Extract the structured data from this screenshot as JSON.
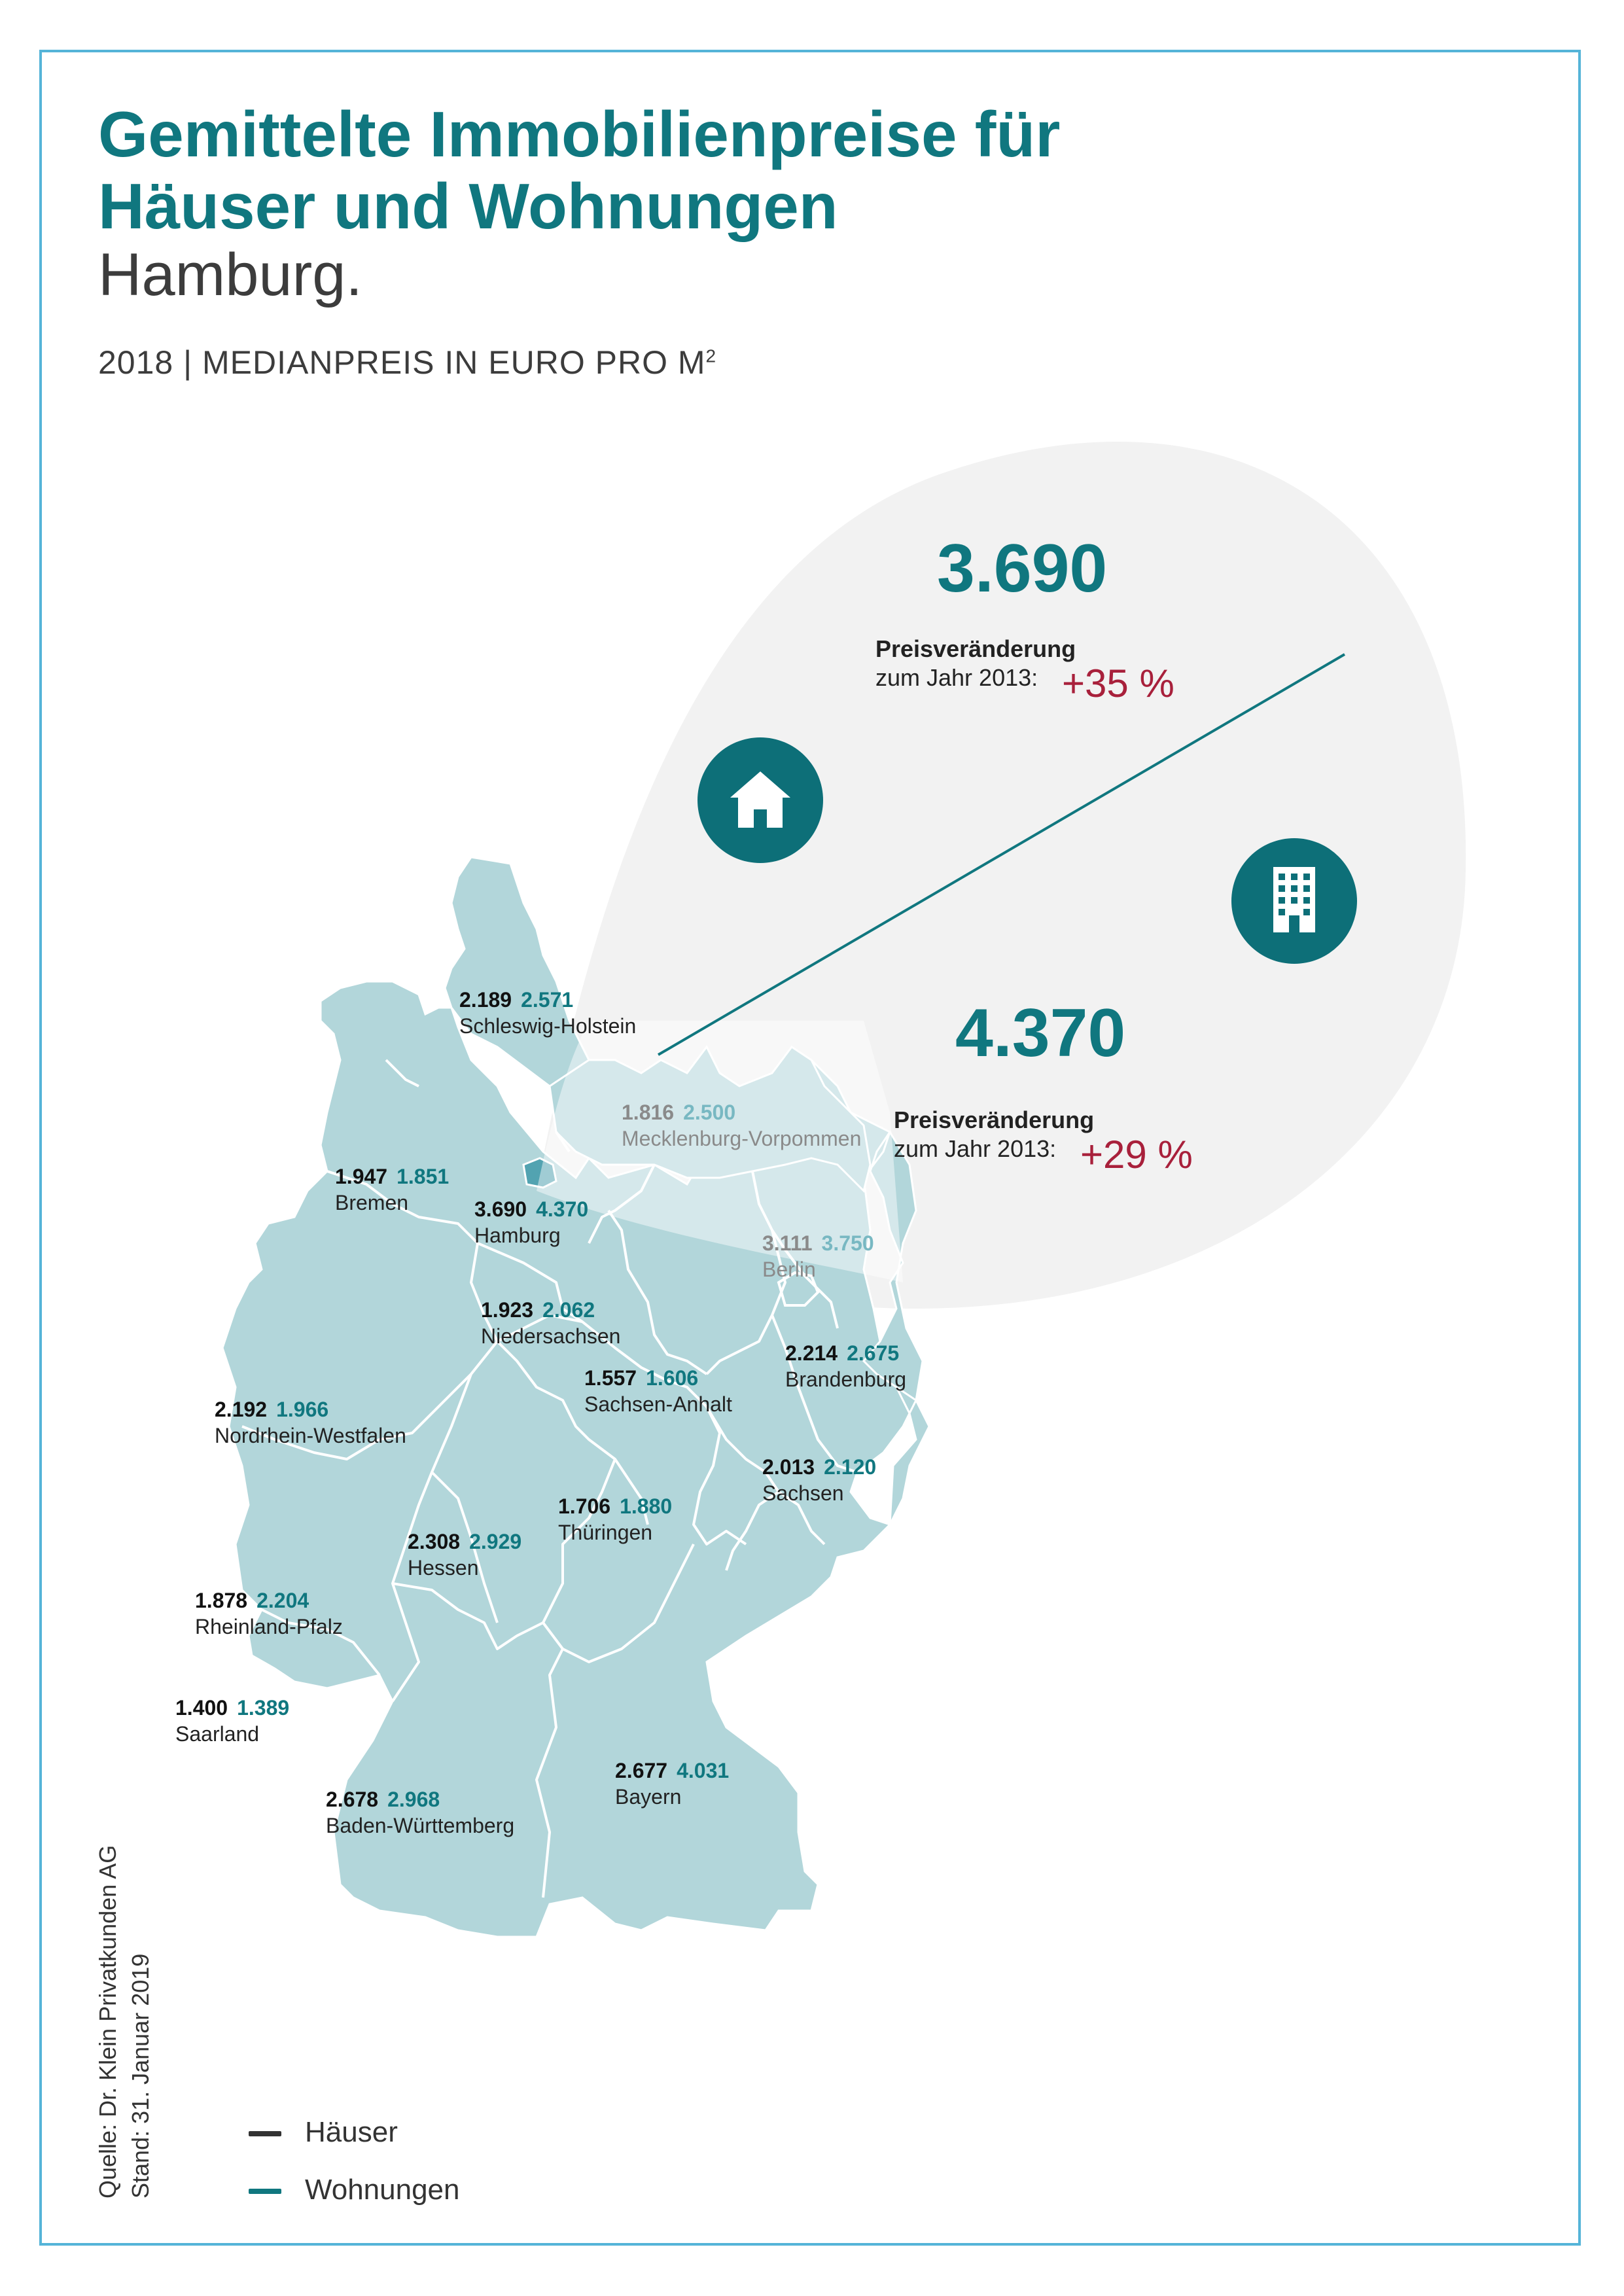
{
  "header": {
    "title": "Gemittelte Immobilienpreise für Häuser und Wohnungen",
    "subtitle": "Hamburg.",
    "meta_text": "2018 | MEDIANPREIS IN EURO PRO M",
    "meta_sup": "2"
  },
  "highlight": {
    "haeuser_value": "3.690",
    "haeuser_change_label": "Preisveränderung",
    "haeuser_change_sub": "zum Jahr 2013:",
    "haeuser_change_pct": "+35 %",
    "wohnungen_value": "4.370",
    "wohnungen_change_label": "Preisveränderung",
    "wohnungen_change_sub": "zum Jahr 2013:",
    "wohnungen_change_pct": "+29 %",
    "house_icon": "house-icon",
    "apartment_icon": "apartment-building-icon"
  },
  "chart_data": {
    "type": "map",
    "title": "Gemittelte Immobilienpreise für Häuser und Wohnungen",
    "unit": "Medianpreis in Euro pro m²",
    "series": [
      {
        "name": "Häuser"
      },
      {
        "name": "Wohnungen"
      }
    ],
    "states": [
      {
        "name": "Schleswig-Holstein",
        "haeuser": "2.189",
        "wohnungen": "2.571"
      },
      {
        "name": "Mecklenburg-Vorpommen",
        "haeuser": "1.816",
        "wohnungen": "2.500"
      },
      {
        "name": "Bremen",
        "haeuser": "1.947",
        "wohnungen": "1.851"
      },
      {
        "name": "Hamburg",
        "haeuser": "3.690",
        "wohnungen": "4.370"
      },
      {
        "name": "Berlin",
        "haeuser": "3.111",
        "wohnungen": "3.750"
      },
      {
        "name": "Niedersachsen",
        "haeuser": "1.923",
        "wohnungen": "2.062"
      },
      {
        "name": "Brandenburg",
        "haeuser": "2.214",
        "wohnungen": "2.675"
      },
      {
        "name": "Sachsen-Anhalt",
        "haeuser": "1.557",
        "wohnungen": "1.606"
      },
      {
        "name": "Nordrhein-Westfalen",
        "haeuser": "2.192",
        "wohnungen": "1.966"
      },
      {
        "name": "Sachsen",
        "haeuser": "2.013",
        "wohnungen": "2.120"
      },
      {
        "name": "Thüringen",
        "haeuser": "1.706",
        "wohnungen": "1.880"
      },
      {
        "name": "Hessen",
        "haeuser": "2.308",
        "wohnungen": "2.929"
      },
      {
        "name": "Rheinland-Pfalz",
        "haeuser": "1.878",
        "wohnungen": "2.204"
      },
      {
        "name": "Saarland",
        "haeuser": "1.400",
        "wohnungen": "1.389"
      },
      {
        "name": "Bayern",
        "haeuser": "2.677",
        "wohnungen": "4.031"
      },
      {
        "name": "Baden-Württemberg",
        "haeuser": "2.678",
        "wohnungen": "2.968"
      }
    ],
    "highlighted_state": "Hamburg"
  },
  "colors": {
    "accent": "#10777f",
    "map_fill": "#b2d6da",
    "callout_bg": "#f2f2f2",
    "change_red": "#a8203b",
    "frame": "#55b4d8",
    "haeuser_legend": "#333333",
    "wohnungen_legend": "#10777f"
  },
  "source": {
    "line1": "Quelle: Dr. Klein Privatkunden AG",
    "line2": "Stand: 31. Januar 2019"
  },
  "legend": [
    {
      "label": "Häuser",
      "color": "#333333"
    },
    {
      "label": "Wohnungen",
      "color": "#10777f"
    }
  ]
}
